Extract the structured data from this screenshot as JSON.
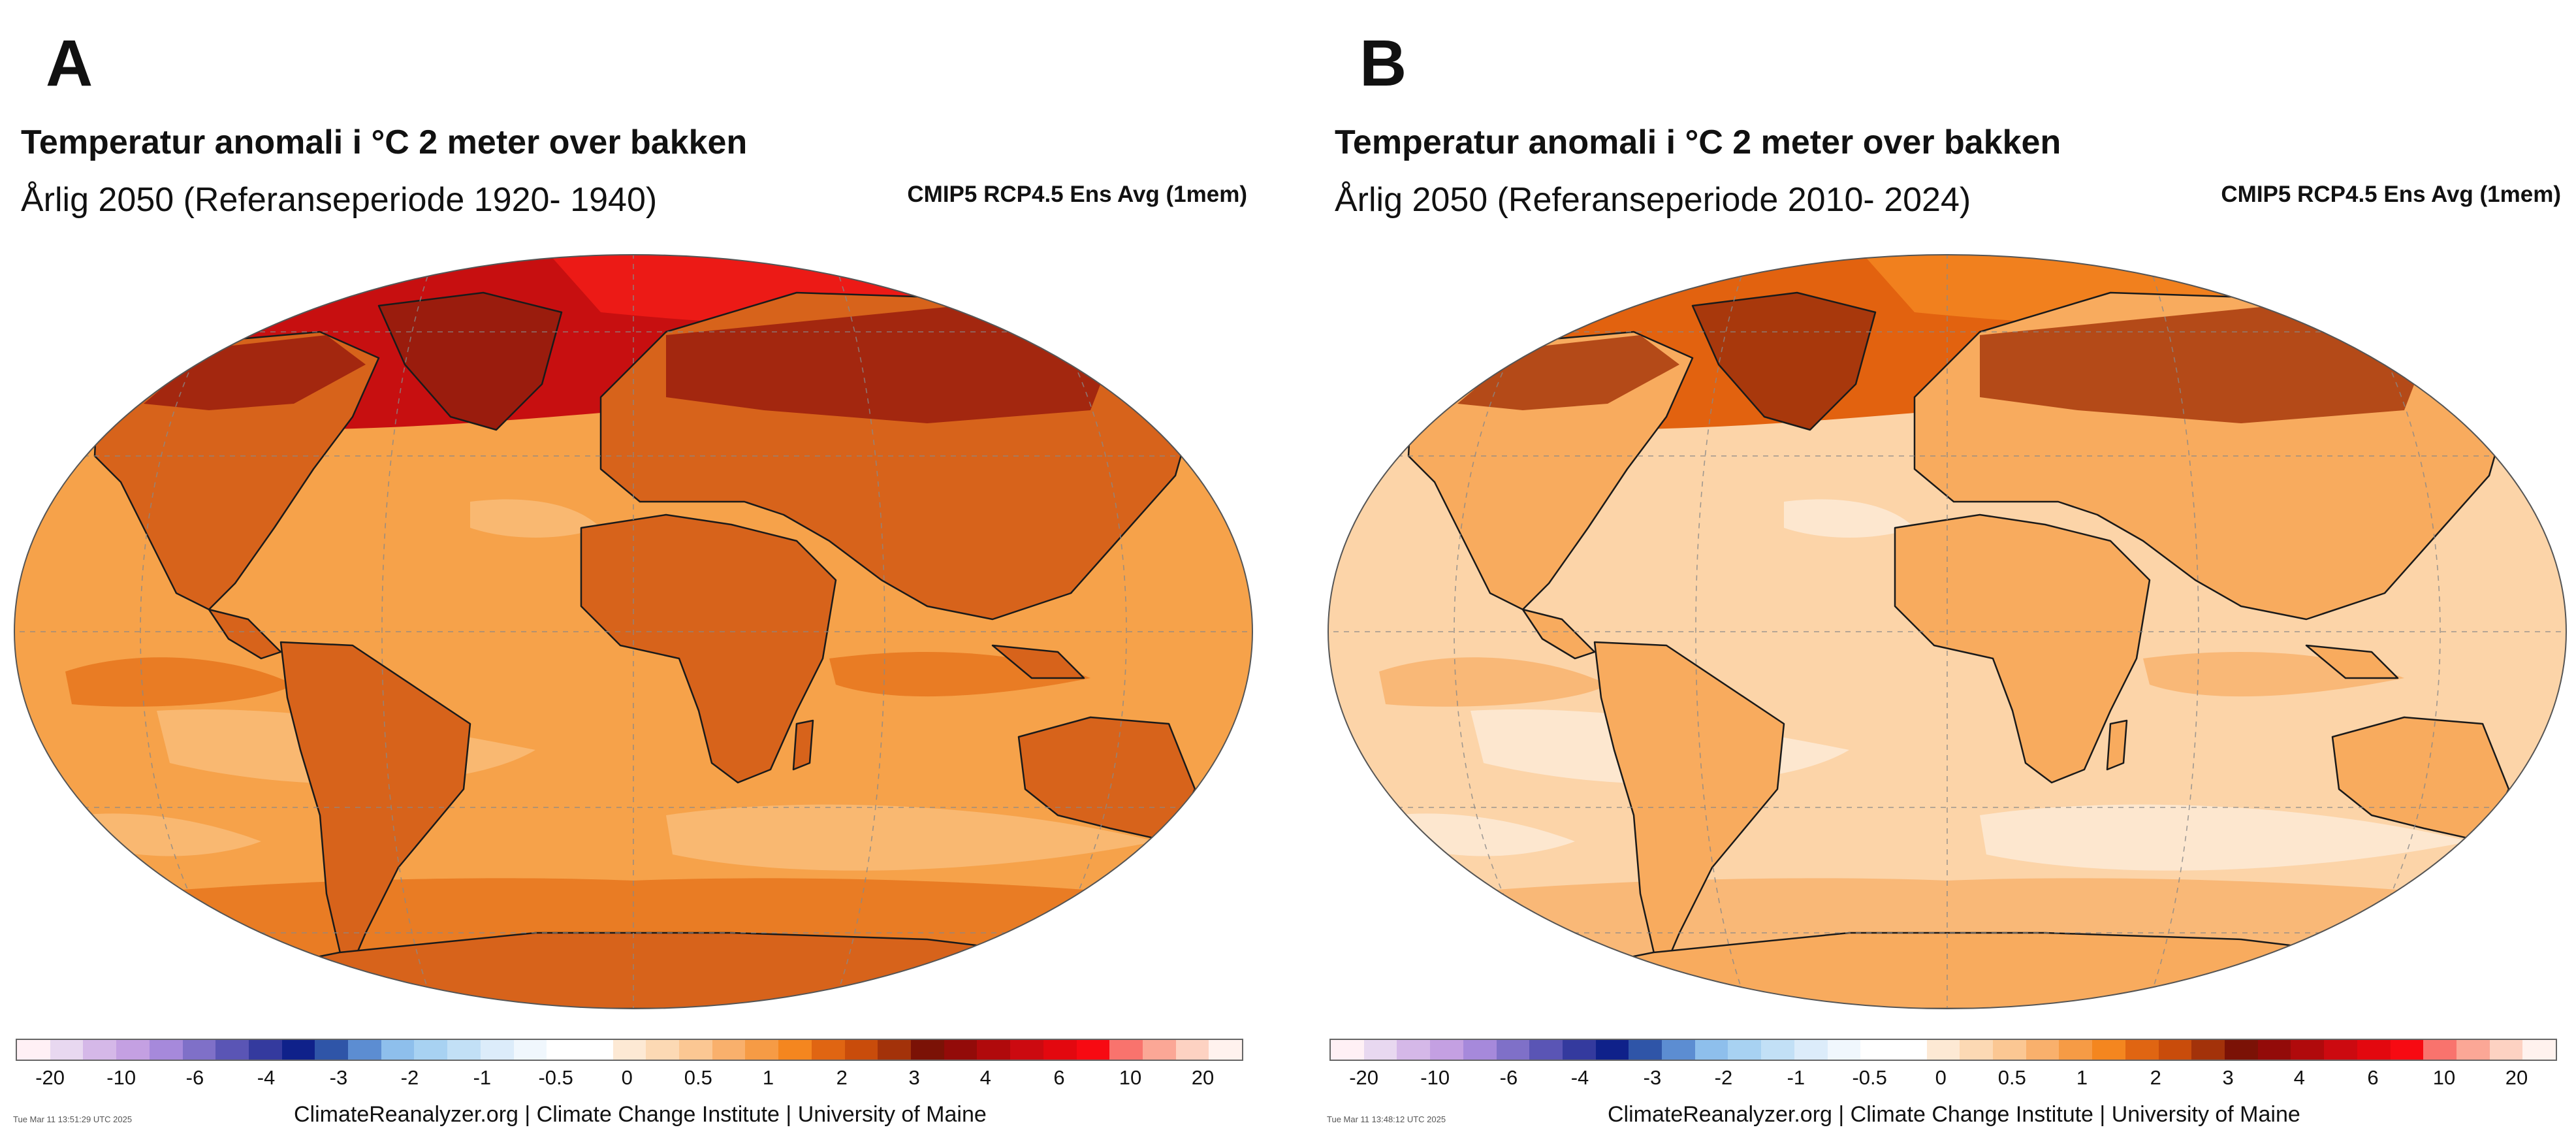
{
  "palette": [
    "#fff0f5",
    "#e8d8f0",
    "#d5b8e8",
    "#c4a0e2",
    "#a689db",
    "#7f70c8",
    "#5a55b5",
    "#343a9e",
    "#0f218a",
    "#2f55a8",
    "#5c8dd2",
    "#8ebfec",
    "#a8d2f2",
    "#c2e0f6",
    "#dcecfa",
    "#f0f7fd",
    "#ffffff",
    "#ffffff",
    "#fde9d4",
    "#fcd9b4",
    "#fbc793",
    "#f9b06c",
    "#f69b45",
    "#f4861f",
    "#e06512",
    "#c94c0b",
    "#a3320a",
    "#7b1206",
    "#930b09",
    "#b00a0c",
    "#cc0a10",
    "#e3080f",
    "#f70a12",
    "#f9736d",
    "#fba796",
    "#fdd2c2",
    "#fff2ee"
  ],
  "colorbar_ticks": [
    "-20",
    "-10",
    "-6",
    "-4",
    "-3",
    "-2",
    "-1",
    "-0.5",
    "0",
    "0.5",
    "1",
    "2",
    "3",
    "4",
    "6",
    "10",
    "20"
  ],
  "panels": [
    {
      "letter": "A",
      "title": "Temperatur anomali i °C 2 meter over bakken",
      "subtitle": "Årlig 2050 (Referanseperiode 1920- 1940)",
      "model": "CMIP5 RCP4.5 Ens Avg (1mem)",
      "timestamp": "Tue Mar 11 13:51:29 UTC 2025",
      "credit": "ClimateReanalyzer.org | Climate Change Institute | University of Maine",
      "colors": {
        "ocean": "#f6a24a",
        "land": "#d7631b",
        "arctic": "#c70f10",
        "arctic_high": "#ec1a16",
        "arctic_land": "#9a1c0d",
        "cool": "#f9b871",
        "warm": "#e97c24"
      }
    },
    {
      "letter": "B",
      "title": "Temperatur anomali i °C 2 meter over bakken",
      "subtitle": "Årlig 2050 (Referanseperiode 2010- 2024)",
      "model": "CMIP5 RCP4.5 Ens Avg (1mem)",
      "timestamp": "Tue Mar 11 13:48:12 UTC 2025",
      "credit": "ClimateReanalyzer.org | Climate Change Institute | University of Maine",
      "colors": {
        "ocean": "#fcd4a8",
        "land": "#f8ab5e",
        "arctic": "#e2620f",
        "arctic_high": "#f1801e",
        "arctic_land": "#a8380c",
        "cool": "#fde7cf",
        "warm": "#f9b877"
      }
    }
  ]
}
